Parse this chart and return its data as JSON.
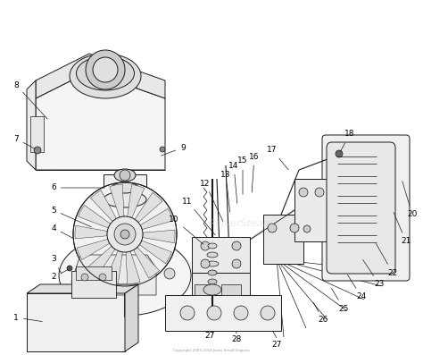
{
  "bg_color": "#ffffff",
  "line_color": "#1a1a1a",
  "label_color": "#000000",
  "figsize": [
    4.74,
    3.97
  ],
  "dpi": 100,
  "watermark": "RepairSteam",
  "watermark_color": "#cccccc",
  "watermark_alpha": 0.4,
  "label_fontsize": 6.5,
  "anno_lw": 0.5,
  "parts_lw": 0.7
}
